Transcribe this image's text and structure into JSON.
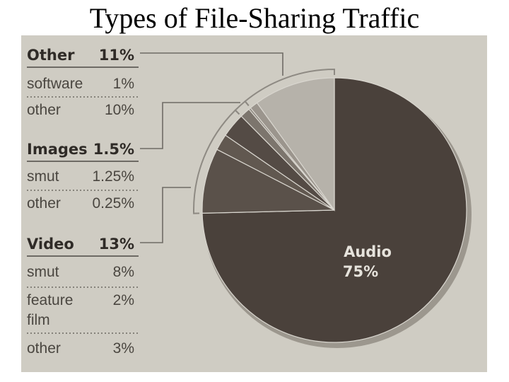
{
  "title": "Types of File-Sharing Traffic",
  "chart_data": {
    "type": "pie",
    "title": "Types of File-Sharing Traffic",
    "groups": [
      {
        "name": "Other",
        "value_label": "11%",
        "value": 11,
        "items": [
          {
            "label": "software",
            "value_label": "1%",
            "value": 1
          },
          {
            "label": "other",
            "value_label": "10%",
            "value": 10
          }
        ]
      },
      {
        "name": "Images",
        "value_label": "1.5%",
        "value": 1.5,
        "items": [
          {
            "label": "smut",
            "value_label": "1.25%",
            "value": 1.25
          },
          {
            "label": "other",
            "value_label": "0.25%",
            "value": 0.25
          }
        ]
      },
      {
        "name": "Video",
        "value_label": "13%",
        "value": 13,
        "items": [
          {
            "label": "smut",
            "value_label": "8%",
            "value": 8
          },
          {
            "label": "feature film",
            "value_label": "2%",
            "value": 2
          },
          {
            "label": "other",
            "value_label": "3%",
            "value": 3
          }
        ]
      }
    ],
    "audio": {
      "name": "Audio",
      "value_label": "75%",
      "value": 75
    },
    "slices": [
      {
        "label": "Audio",
        "value": 75,
        "color": "#4a413b"
      },
      {
        "label": "Video smut",
        "value": 8,
        "color": "#5a514a"
      },
      {
        "label": "Video feature film",
        "value": 2,
        "color": "#615850"
      },
      {
        "label": "Video other",
        "value": 3,
        "color": "#544b45"
      },
      {
        "label": "Images smut",
        "value": 1.25,
        "color": "#7c756d"
      },
      {
        "label": "Images other",
        "value": 0.25,
        "color": "#8f8981"
      },
      {
        "label": "Other software",
        "value": 1,
        "color": "#9b958d"
      },
      {
        "label": "Other other",
        "value": 10,
        "color": "#b6b2aa"
      }
    ]
  }
}
